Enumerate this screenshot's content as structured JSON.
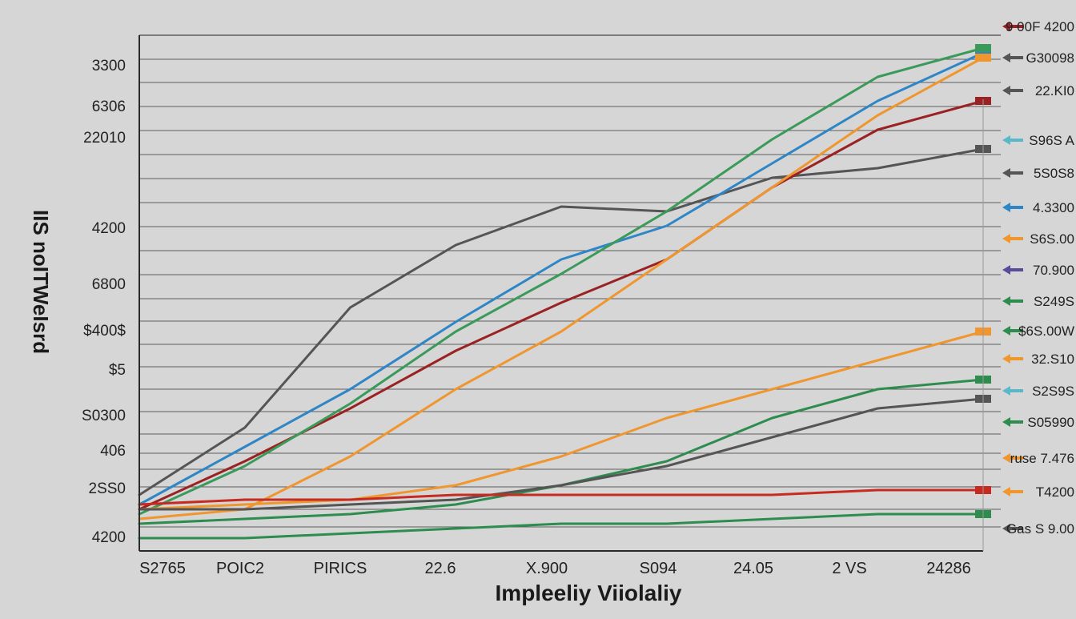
{
  "chart_data": {
    "type": "line",
    "title": "",
    "xlabel": "Impleeliy Viiolaliy",
    "ylabel": "IIS noITWeIsrd",
    "grid": true,
    "legend_placement": "right",
    "x_tick_labels": [
      "S2765",
      "POIC2",
      "PIRICS",
      "22.6",
      "X.900",
      "S094",
      "24.05",
      "2 VS",
      "24286"
    ],
    "y_tick_labels": [
      "3300",
      "6306",
      "22010",
      "4200",
      "6800",
      "$400$",
      "$5",
      "S0300",
      "406",
      "2SS0",
      "4200"
    ],
    "right_labels": [
      "9 00F 4200",
      "G30098",
      "22.KI0",
      "S96S A",
      "5S0S8",
      "4.3300",
      "S6S.00",
      "70.900",
      "S249S",
      "$6S.00W",
      "32.S10",
      "S2S9S",
      "S05990",
      "ruse 7.476",
      "T4200",
      "Gas S 9.00"
    ],
    "x": [
      0,
      1,
      2,
      3,
      4,
      5,
      6,
      7,
      8
    ],
    "ylim": [
      0,
      100
    ],
    "series": [
      {
        "color": "#555555",
        "values": [
          6,
          20,
          45,
          58,
          66,
          65,
          72,
          74,
          78
        ]
      },
      {
        "color": "#9b2222",
        "values": [
          3,
          13,
          24,
          36,
          46,
          55,
          70,
          82,
          88
        ]
      },
      {
        "color": "#2f86c6",
        "values": [
          4,
          16,
          28,
          42,
          55,
          62,
          75,
          88,
          98
        ]
      },
      {
        "color": "#3a9a5a",
        "values": [
          2,
          12,
          25,
          40,
          52,
          65,
          80,
          93,
          99
        ]
      },
      {
        "color": "#f0962f",
        "values": [
          1,
          3,
          14,
          28,
          40,
          55,
          70,
          85,
          97
        ]
      },
      {
        "color": "#f0962f",
        "values": [
          3,
          4,
          5,
          8,
          14,
          22,
          28,
          34,
          40
        ]
      },
      {
        "color": "#2d8c4e",
        "values": [
          0,
          1,
          2,
          4,
          8,
          13,
          22,
          28,
          30
        ]
      },
      {
        "color": "#555555",
        "values": [
          3,
          3,
          4,
          5,
          8,
          12,
          18,
          24,
          26
        ]
      },
      {
        "color": "#c62b22",
        "values": [
          4,
          5,
          5,
          6,
          6,
          6,
          6,
          7,
          7
        ]
      },
      {
        "color": "#2d8c4e",
        "values": [
          -3,
          -3,
          -2,
          -1,
          0,
          0,
          1,
          2,
          2
        ]
      }
    ],
    "right_arrow_colors": [
      "#9b2222",
      "#555555",
      "#555555",
      "#5ab8c8",
      "#555555",
      "#2f86c6",
      "#f0962f",
      "#5a4a9a",
      "#2d8c4e",
      "#2d8c4e",
      "#f0962f",
      "#5ab8c8",
      "#2d8c4e",
      "#f0962f",
      "#f0962f",
      "#555555"
    ]
  }
}
